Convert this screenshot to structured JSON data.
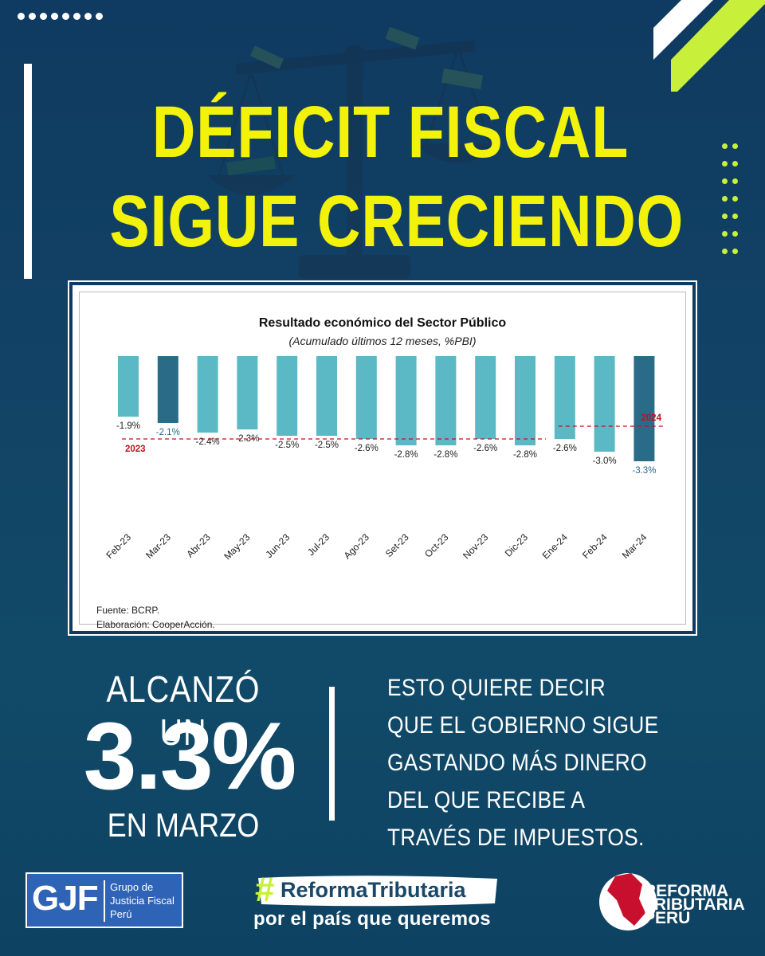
{
  "headline": {
    "line1": "DÉFICIT FISCAL",
    "line2": "SIGUE CRECIENDO"
  },
  "colors": {
    "accent_yellow": "#f2f20a",
    "lime": "#c8f03a",
    "bar_light": "#5bb8c5",
    "bar_dark": "#2a6b88",
    "ref_line": "#c0101a",
    "bg_navy": "#0f3a61"
  },
  "chart_data": {
    "type": "bar",
    "title": "Resultado económico del Sector Público",
    "subtitle": "(Acumulado últimos 12 meses, %PBI)",
    "categories": [
      "Feb-23",
      "Mar-23",
      "Abr-23",
      "May-23",
      "Jun-23",
      "Jul-23",
      "Ago-23",
      "Set-23",
      "Oct-23",
      "Nov-23",
      "Dic-23",
      "Ene-24",
      "Feb-24",
      "Mar-24"
    ],
    "values": [
      -1.9,
      -2.1,
      -2.4,
      -2.3,
      -2.5,
      -2.5,
      -2.6,
      -2.8,
      -2.8,
      -2.6,
      -2.8,
      -2.6,
      -3.0,
      -3.3
    ],
    "value_labels": [
      "-1.9%",
      "-2.1%",
      "-2.4%",
      "-2.3%",
      "-2.5%",
      "-2.5%",
      "-2.6%",
      "-2.8%",
      "-2.8%",
      "-2.6%",
      "-2.8%",
      "-2.6%",
      "-3.0%",
      "-3.3%"
    ],
    "highlight": [
      "Mar-23",
      "Mar-24"
    ],
    "reference_lines": [
      {
        "label": "2023",
        "value": -2.4,
        "from": "Feb-23",
        "to": "Dic-23"
      },
      {
        "label": "2024",
        "value": -2.0,
        "from": "Ene-24",
        "to": "Mar-24"
      }
    ],
    "ylim": [
      -4.0,
      0
    ],
    "grid": false,
    "legend": "none"
  },
  "source": {
    "line1": "Fuente: BCRP.",
    "line2": "Elaboración: CooperAcción."
  },
  "summary": {
    "line1": "ALCANZÓ UN",
    "big": "3.3%",
    "line3": "EN MARZO"
  },
  "explanation": [
    "ESTO QUIERE DECIR",
    "QUE EL GOBIERNO SIGUE",
    "GASTANDO MÁS DINERO",
    "DEL QUE RECIBE A",
    "TRAVÉS DE IMPUESTOS."
  ],
  "footer": {
    "gjf_letters": "GJF",
    "gjf_name": [
      "Grupo de",
      "Justicia Fiscal",
      "Perú"
    ],
    "hashtag_sign": "#",
    "hashtag": "ReformaTributaria",
    "tagline": "por el país que queremos",
    "rt_logo": [
      "REFORMA",
      "TRIBUTARIA",
      "PERÚ"
    ]
  }
}
